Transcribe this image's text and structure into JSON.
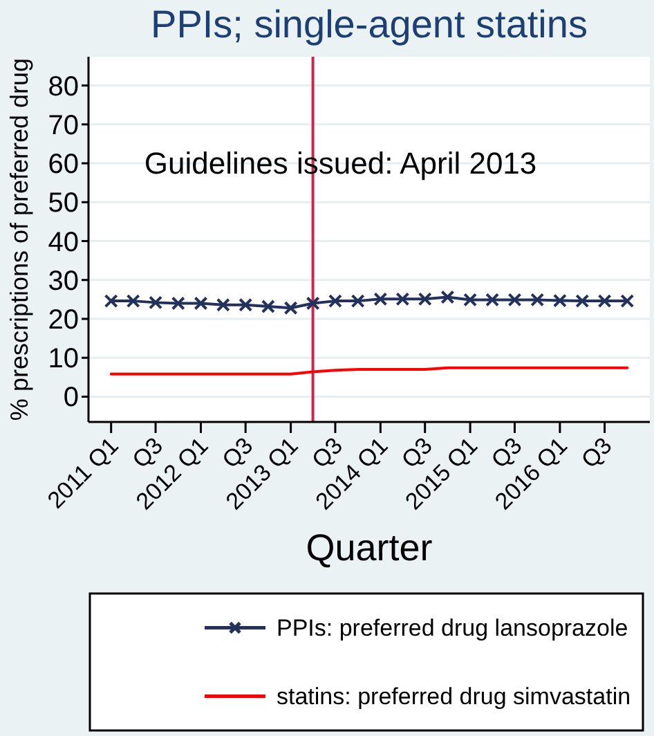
{
  "chart_data": {
    "type": "line",
    "title": "PPIs; single-agent statins",
    "xlabel": "Quarter",
    "ylabel": "% prescriptions of preferred drug",
    "x": [
      "2011-01",
      "2011-04",
      "2011-07",
      "2011-10",
      "2012-01",
      "2012-04",
      "2012-07",
      "2012-10",
      "2013-01",
      "2013-04",
      "2013-07",
      "2013-10",
      "2014-01",
      "2014-04",
      "2014-07",
      "2014-10",
      "2015-01",
      "2015-04",
      "2015-07",
      "2015-10",
      "2016-01",
      "2016-04",
      "2016-07",
      "2016-10"
    ],
    "series": [
      {
        "name": "PPIs: preferred drug lansoprazole",
        "color": "#24315c",
        "marker": "cross",
        "values": [
          24.6,
          24.6,
          24.2,
          24.0,
          24.0,
          23.6,
          23.6,
          23.2,
          22.8,
          24.0,
          24.6,
          24.6,
          25.1,
          25.1,
          25.1,
          25.6,
          24.9,
          24.9,
          24.9,
          24.9,
          24.7,
          24.6,
          24.6,
          24.6
        ]
      },
      {
        "name": "statins: preferred drug simvastatin",
        "color": "#ff0000",
        "marker": "none",
        "values": [
          5.8,
          5.8,
          5.8,
          5.8,
          5.8,
          5.8,
          5.8,
          5.8,
          5.8,
          6.4,
          6.8,
          7.0,
          7.0,
          7.0,
          7.0,
          7.4,
          7.4,
          7.4,
          7.4,
          7.4,
          7.4,
          7.4,
          7.4,
          7.4
        ]
      }
    ],
    "xlim": [
      "2010-10",
      "2017-01"
    ],
    "ylim": [
      -6.5,
      87.4
    ],
    "xticks": [
      {
        "value": "2011-01",
        "label": "2011 Q1"
      },
      {
        "value": "2011-07",
        "label": "Q3"
      },
      {
        "value": "2012-01",
        "label": "2012 Q1"
      },
      {
        "value": "2012-07",
        "label": "Q3"
      },
      {
        "value": "2013-01",
        "label": "2013 Q1"
      },
      {
        "value": "2013-07",
        "label": "Q3"
      },
      {
        "value": "2014-01",
        "label": "2014 Q1"
      },
      {
        "value": "2014-07",
        "label": "Q3"
      },
      {
        "value": "2015-01",
        "label": "2015 Q1"
      },
      {
        "value": "2015-07",
        "label": "Q3"
      },
      {
        "value": "2016-01",
        "label": "2016 Q1"
      },
      {
        "value": "2016-07",
        "label": "Q3"
      }
    ],
    "yticks": [
      0,
      10,
      20,
      30,
      40,
      50,
      60,
      70,
      80
    ],
    "grid": "y",
    "legend": "bottom",
    "ref_lines": [
      {
        "axis": "x",
        "value": "2013-04",
        "label": "Guidelines issued: April 2013",
        "color": "#c9284e"
      }
    ]
  }
}
